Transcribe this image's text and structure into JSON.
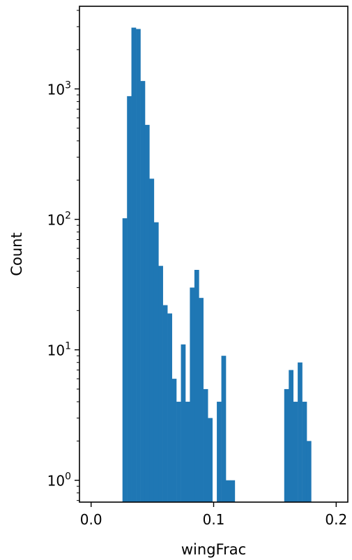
{
  "chart_data": {
    "type": "bar",
    "xlabel": "wingFrac",
    "ylabel": "Count",
    "yscale": "log",
    "xlim": [
      -0.0095,
      0.2095
    ],
    "ylim": [
      0.68,
      4300
    ],
    "bar_color": "#1f77b4",
    "grid": false,
    "bin_width": 0.003667,
    "x_ticks": [
      {
        "value": 0.0,
        "label": "0.0"
      },
      {
        "value": 0.1,
        "label": "0.1"
      },
      {
        "value": 0.2,
        "label": "0.2"
      }
    ],
    "y_major_ticks": [
      {
        "value": 1,
        "base": "10",
        "exp": "0"
      },
      {
        "value": 10,
        "base": "10",
        "exp": "1"
      },
      {
        "value": 100,
        "base": "10",
        "exp": "2"
      },
      {
        "value": 1000,
        "base": "10",
        "exp": "3"
      }
    ],
    "bins": [
      {
        "x": 0.0256,
        "count": 102
      },
      {
        "x": 0.0293,
        "count": 880
      },
      {
        "x": 0.0329,
        "count": 2950
      },
      {
        "x": 0.0366,
        "count": 2880
      },
      {
        "x": 0.0403,
        "count": 1150
      },
      {
        "x": 0.0439,
        "count": 530
      },
      {
        "x": 0.0476,
        "count": 205
      },
      {
        "x": 0.0513,
        "count": 95
      },
      {
        "x": 0.0549,
        "count": 44
      },
      {
        "x": 0.0586,
        "count": 22
      },
      {
        "x": 0.0623,
        "count": 19
      },
      {
        "x": 0.0659,
        "count": 6
      },
      {
        "x": 0.0696,
        "count": 4
      },
      {
        "x": 0.0733,
        "count": 11
      },
      {
        "x": 0.0769,
        "count": 4
      },
      {
        "x": 0.0806,
        "count": 30
      },
      {
        "x": 0.0843,
        "count": 41
      },
      {
        "x": 0.0879,
        "count": 25
      },
      {
        "x": 0.0916,
        "count": 5
      },
      {
        "x": 0.0953,
        "count": 3
      },
      {
        "x": 0.1026,
        "count": 4
      },
      {
        "x": 0.1063,
        "count": 9
      },
      {
        "x": 0.1099,
        "count": 1
      },
      {
        "x": 0.1136,
        "count": 1
      },
      {
        "x": 0.1576,
        "count": 5
      },
      {
        "x": 0.1613,
        "count": 7
      },
      {
        "x": 0.1649,
        "count": 4
      },
      {
        "x": 0.1686,
        "count": 8
      },
      {
        "x": 0.1723,
        "count": 4
      },
      {
        "x": 0.1759,
        "count": 2
      }
    ]
  }
}
